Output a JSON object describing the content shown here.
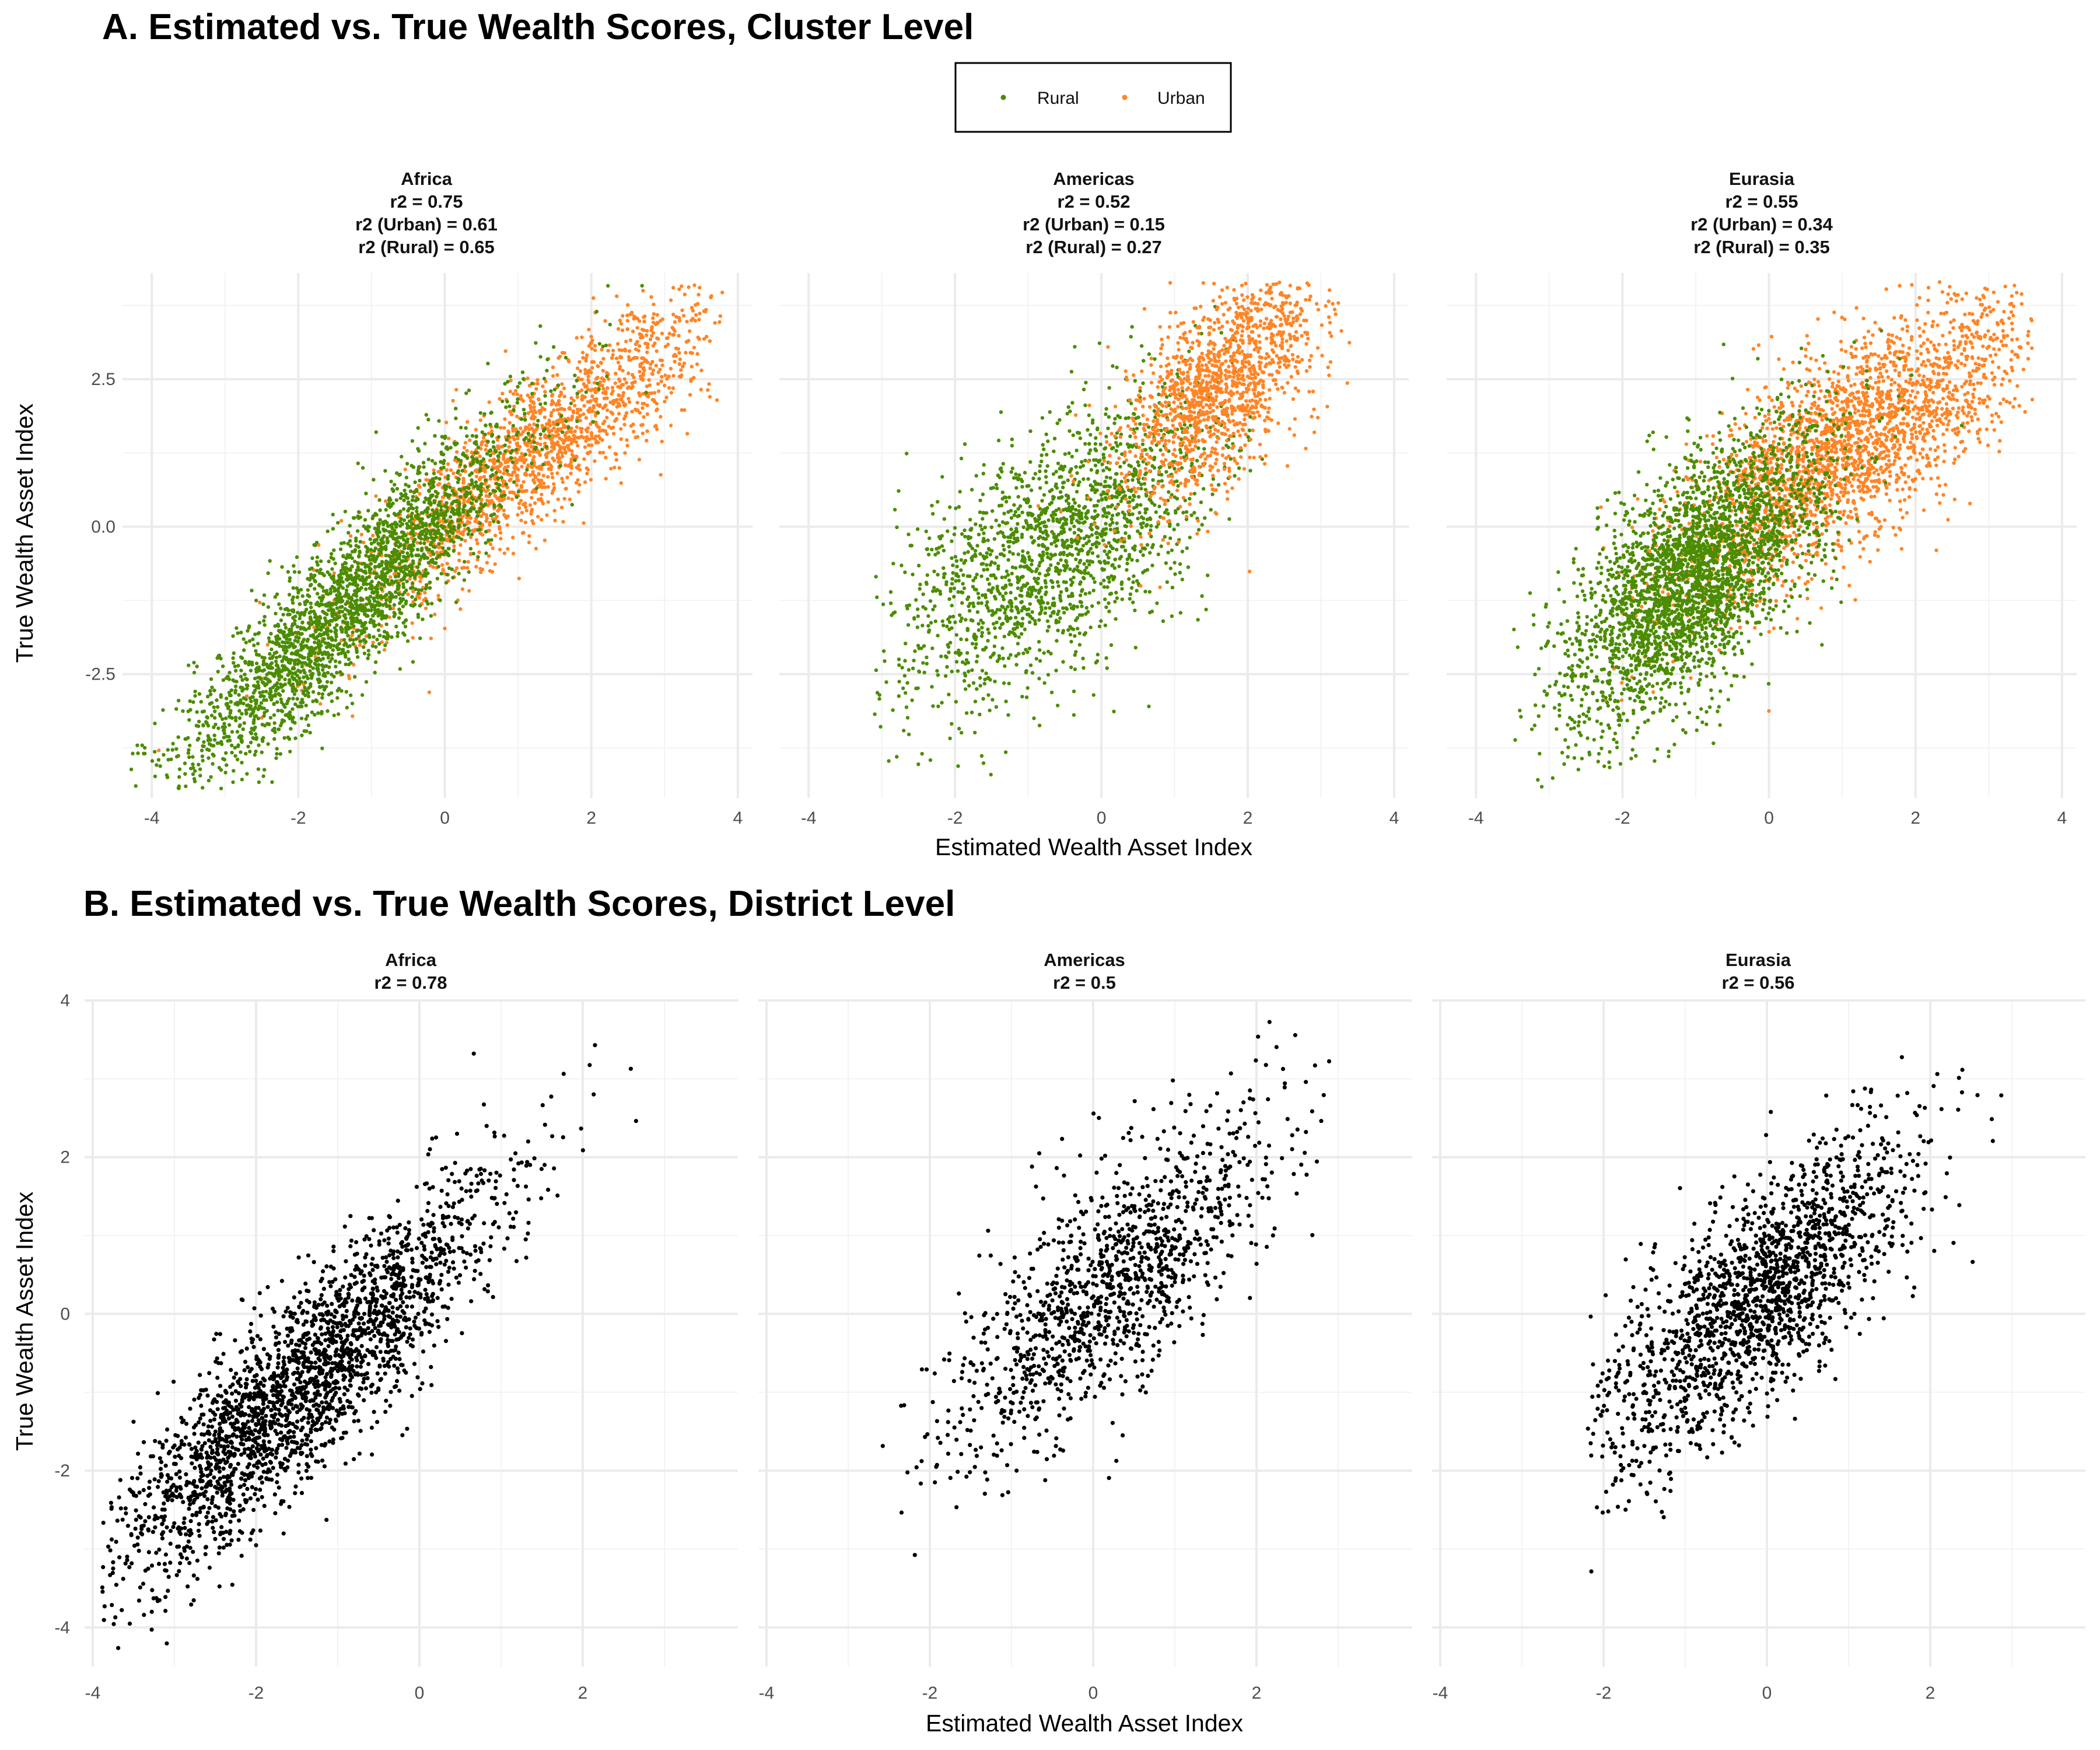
{
  "colors": {
    "rural": "#4C8C00",
    "urban": "#FF8526",
    "district": "#000000"
  },
  "legend": {
    "placement": "top-center",
    "items": [
      {
        "label": "Rural"
      },
      {
        "label": "Urban"
      }
    ]
  },
  "panels": {
    "a": {
      "title": "A. Estimated vs. True Wealth Scores, Cluster Level",
      "xlabel": "Estimated Wealth Asset Index",
      "ylabel": "True Wealth Asset Index",
      "xticks": [
        -4,
        -2,
        0,
        2,
        4
      ],
      "yticks": [
        -2.5,
        0.0,
        2.5
      ],
      "ytick_labels": [
        "-2.5",
        "0.0",
        "2.5"
      ],
      "facets": [
        {
          "strip": [
            "Africa",
            "r2 = 0.75",
            "r2 (Urban) = 0.61",
            "r2 (Rural) = 0.65"
          ]
        },
        {
          "strip": [
            "Americas",
            "r2 = 0.52",
            "r2 (Urban) = 0.15",
            "r2 (Rural) = 0.27"
          ]
        },
        {
          "strip": [
            "Eurasia",
            "r2 = 0.55",
            "r2 (Urban) = 0.34",
            "r2 (Rural) = 0.35"
          ]
        }
      ]
    },
    "b": {
      "title": "B. Estimated vs. True Wealth Scores, District Level",
      "xlabel": "Estimated Wealth Asset Index",
      "ylabel": "True Wealth Asset Index",
      "xticks": [
        -4,
        -2,
        0,
        2
      ],
      "yticks": [
        -4,
        -2,
        0,
        2,
        4
      ],
      "ytick_labels": [
        "-4",
        "-2",
        "0",
        "2",
        "4"
      ],
      "facets": [
        {
          "strip": [
            "Africa",
            "r2 = 0.78"
          ]
        },
        {
          "strip": [
            "Americas",
            "r2 = 0.5"
          ]
        },
        {
          "strip": [
            "Eurasia",
            "r2 = 0.56"
          ]
        }
      ]
    }
  },
  "chart_data": [
    {
      "type": "scatter",
      "title": "A. Estimated vs. True Wealth Scores, Cluster Level",
      "xlabel": "Estimated Wealth Asset Index",
      "ylabel": "True Wealth Asset Index",
      "xlim": [
        -4.4,
        4.2
      ],
      "ylim": [
        -4.6,
        4.3
      ],
      "grid": true,
      "facets": [
        "Africa",
        "Americas",
        "Eurasia"
      ],
      "series": [
        {
          "name": "Rural",
          "description": "approximate point clouds (trend and spread estimated from the figure)",
          "facet_distributions": [
            {
              "facet": "Africa",
              "n": 2600,
              "x_mean": -1.3,
              "x_sd": 1.2,
              "x_range": [
                -4.3,
                3.2
              ],
              "y_intercept": 0.25,
              "y_slope": 1.18,
              "y_sd": 0.65
            },
            {
              "facet": "Americas",
              "n": 1800,
              "x_mean": -0.6,
              "x_sd": 1.15,
              "x_range": [
                -3.1,
                2.3
              ],
              "y_intercept": 0.1,
              "y_slope": 0.75,
              "y_sd": 1.05
            },
            {
              "facet": "Eurasia",
              "n": 3000,
              "x_mean": -1.0,
              "x_sd": 0.9,
              "x_range": [
                -3.5,
                3.3
              ],
              "y_intercept": 0.1,
              "y_slope": 0.9,
              "y_sd": 0.95
            }
          ]
        },
        {
          "name": "Urban",
          "description": "approximate point clouds (trend and spread estimated from the figure)",
          "facet_distributions": [
            {
              "facet": "Africa",
              "n": 1700,
              "x_mean": 1.3,
              "x_sd": 1.3,
              "x_range": [
                -4.0,
                3.8
              ],
              "y_intercept": 0.0,
              "y_slope": 1.0,
              "y_sd": 0.65
            },
            {
              "facet": "Americas",
              "n": 1400,
              "x_mean": 1.6,
              "x_sd": 0.7,
              "x_range": [
                -1.0,
                3.5
              ],
              "y_intercept": 0.9,
              "y_slope": 0.95,
              "y_sd": 0.8
            },
            {
              "facet": "Eurasia",
              "n": 2400,
              "x_mean": 1.1,
              "x_sd": 1.2,
              "x_range": [
                -3.5,
                3.6
              ],
              "y_intercept": 0.5,
              "y_slope": 0.8,
              "y_sd": 0.85
            }
          ]
        }
      ]
    },
    {
      "type": "scatter",
      "title": "B. Estimated vs. True Wealth Scores, District Level",
      "xlabel": "Estimated Wealth Asset Index",
      "ylabel": "True Wealth Asset Index",
      "xlim": [
        -4.1,
        3.9
      ],
      "ylim": [
        -4.5,
        4.0
      ],
      "grid": true,
      "facets": [
        "Africa",
        "Americas",
        "Eurasia"
      ],
      "series": [
        {
          "name": "",
          "description": "approximate point clouds (trend and spread estimated from the figure)",
          "facet_distributions": [
            {
              "facet": "Africa",
              "n": 2300,
              "x_mean": -1.4,
              "x_sd": 1.2,
              "x_range": [
                -3.9,
                3.4
              ],
              "y_intercept": 0.45,
              "y_slope": 0.95,
              "y_sd": 0.6
            },
            {
              "facet": "Americas",
              "n": 1200,
              "x_mean": 0.2,
              "x_sd": 1.05,
              "x_range": [
                -2.6,
                2.9
              ],
              "y_intercept": 0.2,
              "y_slope": 0.85,
              "y_sd": 0.75
            },
            {
              "facet": "Eurasia",
              "n": 1700,
              "x_mean": -0.1,
              "x_sd": 0.95,
              "x_range": [
                -2.2,
                3.0
              ],
              "y_intercept": 0.3,
              "y_slope": 0.85,
              "y_sd": 0.7
            }
          ]
        }
      ]
    }
  ]
}
